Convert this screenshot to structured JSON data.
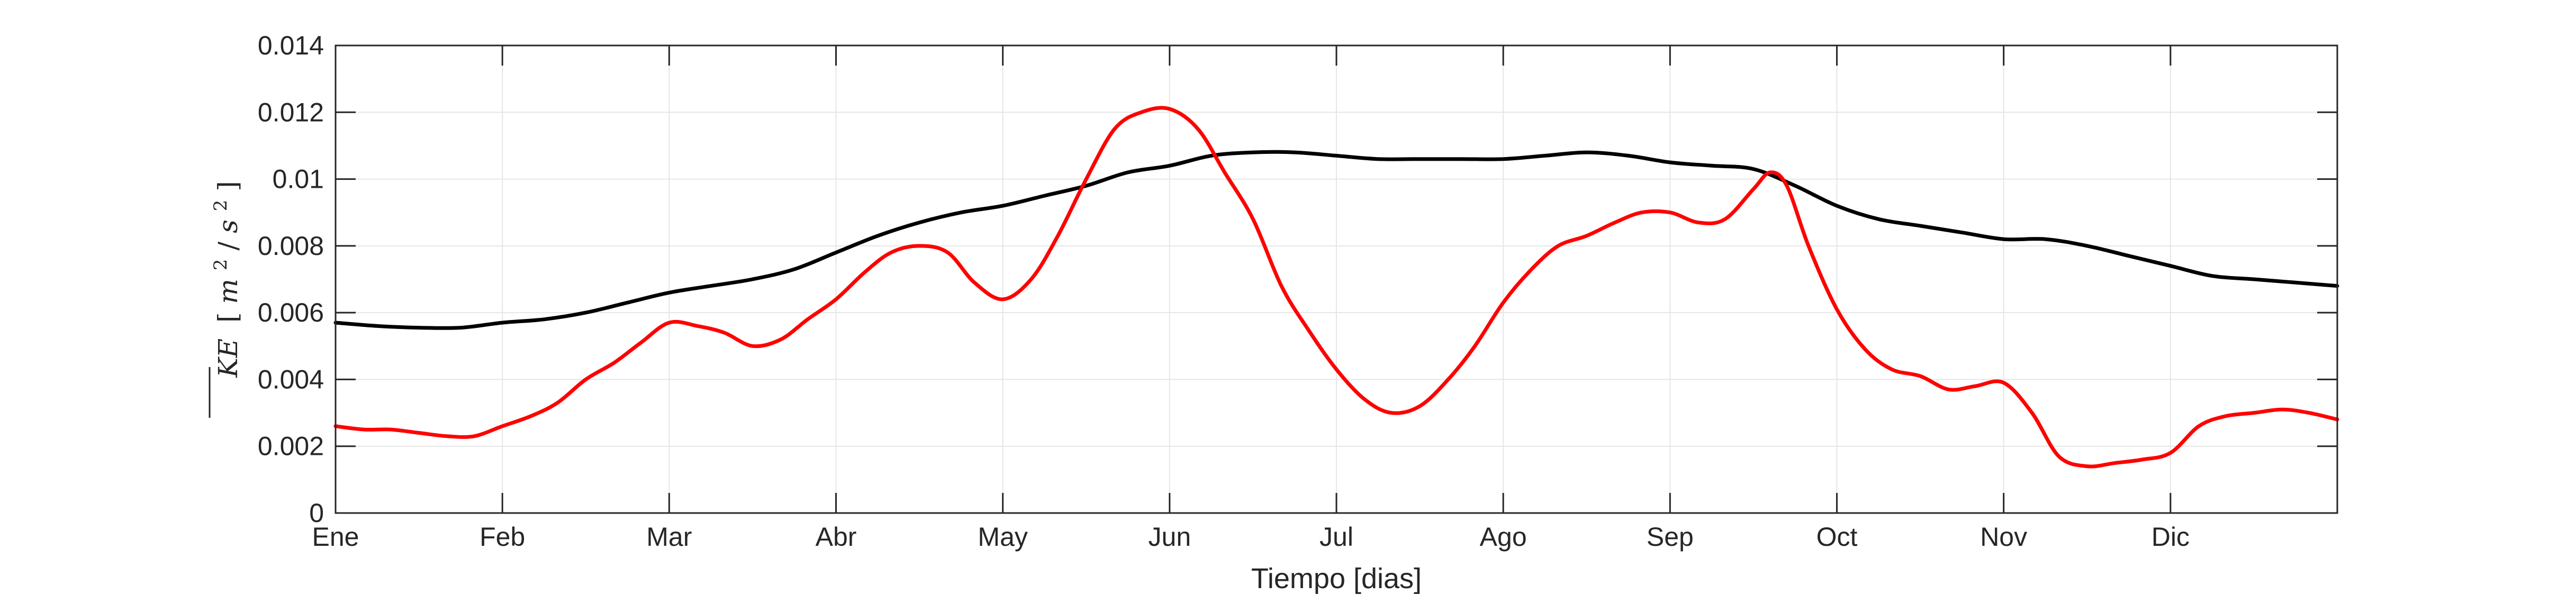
{
  "chart_data": {
    "type": "line",
    "title": "",
    "xlabel": "Tiempo [dias]",
    "ylabel": "KE [m^2/s^2]",
    "ylabel_parts": {
      "symbol": "KE",
      "unit_open": "[",
      "m": "m",
      "exp1": "2",
      "slash": "/",
      "s": "s",
      "exp2": "2",
      "unit_close": "]"
    },
    "xlim": [
      0,
      12
    ],
    "ylim": [
      0,
      0.014
    ],
    "grid": true,
    "legend": "none",
    "x_ticks": [
      {
        "value": 0,
        "label": "Ene"
      },
      {
        "value": 1,
        "label": "Feb"
      },
      {
        "value": 2,
        "label": "Mar"
      },
      {
        "value": 3,
        "label": "Abr"
      },
      {
        "value": 4,
        "label": "May"
      },
      {
        "value": 5,
        "label": "Jun"
      },
      {
        "value": 6,
        "label": "Jul"
      },
      {
        "value": 7,
        "label": "Ago"
      },
      {
        "value": 8,
        "label": "Sep"
      },
      {
        "value": 9,
        "label": "Oct"
      },
      {
        "value": 10,
        "label": "Nov"
      },
      {
        "value": 11,
        "label": "Dic"
      }
    ],
    "y_ticks": [
      {
        "value": 0,
        "label": "0"
      },
      {
        "value": 0.002,
        "label": "0.002"
      },
      {
        "value": 0.004,
        "label": "0.004"
      },
      {
        "value": 0.006,
        "label": "0.006"
      },
      {
        "value": 0.008,
        "label": "0.008"
      },
      {
        "value": 0.01,
        "label": "0.01"
      },
      {
        "value": 0.012,
        "label": "0.012"
      },
      {
        "value": 0.014,
        "label": "0.014"
      }
    ],
    "series": [
      {
        "color": "#000000",
        "x": [
          0,
          0.25,
          0.5,
          0.75,
          1,
          1.25,
          1.5,
          1.75,
          2,
          2.25,
          2.5,
          2.75,
          3,
          3.25,
          3.5,
          3.75,
          4,
          4.25,
          4.5,
          4.75,
          5,
          5.25,
          5.5,
          5.75,
          6,
          6.25,
          6.5,
          6.75,
          7,
          7.25,
          7.5,
          7.75,
          8,
          8.25,
          8.5,
          8.75,
          9,
          9.25,
          9.5,
          9.75,
          10,
          10.25,
          10.5,
          10.75,
          11,
          11.25,
          11.5,
          11.75,
          12
        ],
        "y": [
          0.0057,
          0.0056,
          0.00555,
          0.00555,
          0.0057,
          0.0058,
          0.006,
          0.0063,
          0.0066,
          0.0068,
          0.007,
          0.0073,
          0.0078,
          0.0083,
          0.0087,
          0.009,
          0.0092,
          0.0095,
          0.0098,
          0.0102,
          0.0104,
          0.0107,
          0.0108,
          0.0108,
          0.0107,
          0.0106,
          0.0106,
          0.0106,
          0.0106,
          0.0107,
          0.0108,
          0.0107,
          0.0105,
          0.0104,
          0.0103,
          0.0098,
          0.0092,
          0.0088,
          0.0086,
          0.0084,
          0.0082,
          0.0082,
          0.008,
          0.0077,
          0.0074,
          0.0071,
          0.007,
          0.0069,
          0.0068
        ]
      },
      {
        "color": "#ff0000",
        "x": [
          0,
          0.17,
          0.33,
          0.5,
          0.67,
          0.83,
          1,
          1.17,
          1.33,
          1.5,
          1.67,
          1.83,
          2,
          2.17,
          2.33,
          2.5,
          2.67,
          2.83,
          3,
          3.17,
          3.33,
          3.5,
          3.67,
          3.83,
          4,
          4.17,
          4.33,
          4.5,
          4.67,
          4.83,
          5,
          5.17,
          5.33,
          5.5,
          5.67,
          5.83,
          6,
          6.17,
          6.33,
          6.5,
          6.67,
          6.83,
          7,
          7.17,
          7.33,
          7.5,
          7.67,
          7.83,
          8,
          8.17,
          8.33,
          8.5,
          8.6,
          8.7,
          8.83,
          9,
          9.17,
          9.33,
          9.5,
          9.67,
          9.83,
          10,
          10.17,
          10.33,
          10.5,
          10.67,
          10.83,
          11,
          11.17,
          11.33,
          11.5,
          11.67,
          11.83,
          12
        ],
        "y": [
          0.0026,
          0.0025,
          0.0025,
          0.0024,
          0.0023,
          0.0023,
          0.0026,
          0.0029,
          0.0033,
          0.004,
          0.0045,
          0.0051,
          0.0057,
          0.0056,
          0.0054,
          0.005,
          0.0052,
          0.0058,
          0.0064,
          0.0072,
          0.0078,
          0.008,
          0.0078,
          0.0069,
          0.0064,
          0.007,
          0.0083,
          0.01,
          0.0115,
          0.012,
          0.0121,
          0.0115,
          0.0102,
          0.0088,
          0.0068,
          0.0055,
          0.0043,
          0.0034,
          0.003,
          0.0032,
          0.004,
          0.005,
          0.0063,
          0.0073,
          0.008,
          0.0083,
          0.0087,
          0.009,
          0.009,
          0.0087,
          0.0088,
          0.0097,
          0.0102,
          0.0098,
          0.008,
          0.0061,
          0.0049,
          0.0043,
          0.0041,
          0.0037,
          0.0038,
          0.0039,
          0.003,
          0.0017,
          0.0014,
          0.0015,
          0.0016,
          0.0018,
          0.0026,
          0.0029,
          0.003,
          0.0031,
          0.003,
          0.0028
        ]
      }
    ]
  },
  "colors": {
    "axis": "#262626",
    "grid": "#e6e6e6",
    "background": "#ffffff"
  }
}
